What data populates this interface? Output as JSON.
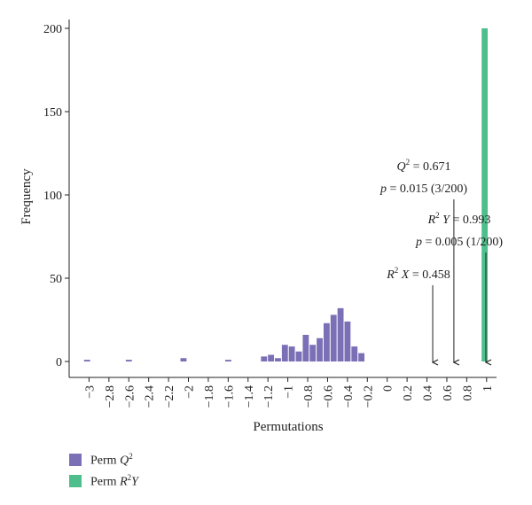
{
  "chart_data": {
    "type": "bar",
    "xlabel": "Permutations",
    "ylabel": "Frequency",
    "xlim": [
      -3.2,
      1.1
    ],
    "ylim": [
      0,
      200
    ],
    "x_ticks": [
      -3,
      -2.8,
      -2.6,
      -2.4,
      -2.2,
      -2,
      -1.8,
      -1.6,
      -1.4,
      -1.2,
      -1,
      -0.8,
      -0.6,
      -0.4,
      -0.2,
      0,
      0.2,
      0.4,
      0.6,
      0.8,
      1
    ],
    "x_tick_labels": [
      "−3",
      "−2.8",
      "−2.6",
      "−2.4",
      "−2.2",
      "−2",
      "−1.8",
      "−1.6",
      "−1.4",
      "−1.2",
      "−1",
      "−0.8",
      "−0.6",
      "−0.4",
      "−0.2",
      "0",
      "0.2",
      "0.4",
      "0.6",
      "0.8",
      "1"
    ],
    "y_ticks": [
      0,
      50,
      100,
      150,
      200
    ],
    "series": [
      {
        "name": "Perm Q2",
        "color": "#7b70b6",
        "bins": [
          {
            "x0": -3.05,
            "x1": -2.98,
            "value": 1
          },
          {
            "x0": -2.63,
            "x1": -2.56,
            "value": 1
          },
          {
            "x0": -2.08,
            "x1": -2.01,
            "value": 2
          },
          {
            "x0": -1.63,
            "x1": -1.56,
            "value": 1
          },
          {
            "x0": -1.27,
            "x1": -1.2,
            "value": 3
          },
          {
            "x0": -1.2,
            "x1": -1.13,
            "value": 4
          },
          {
            "x0": -1.13,
            "x1": -1.06,
            "value": 2
          },
          {
            "x0": -1.06,
            "x1": -0.99,
            "value": 10
          },
          {
            "x0": -0.99,
            "x1": -0.92,
            "value": 9
          },
          {
            "x0": -0.92,
            "x1": -0.85,
            "value": 6
          },
          {
            "x0": -0.85,
            "x1": -0.78,
            "value": 16
          },
          {
            "x0": -0.78,
            "x1": -0.71,
            "value": 10
          },
          {
            "x0": -0.71,
            "x1": -0.64,
            "value": 14
          },
          {
            "x0": -0.64,
            "x1": -0.57,
            "value": 23
          },
          {
            "x0": -0.57,
            "x1": -0.5,
            "value": 28
          },
          {
            "x0": -0.5,
            "x1": -0.43,
            "value": 32
          },
          {
            "x0": -0.43,
            "x1": -0.36,
            "value": 24
          },
          {
            "x0": -0.36,
            "x1": -0.29,
            "value": 9
          },
          {
            "x0": -0.29,
            "x1": -0.22,
            "value": 5
          }
        ]
      },
      {
        "name": "Perm R2Y",
        "color": "#4ebf8c",
        "bins": [
          {
            "x0": 0.95,
            "x1": 1.02,
            "value": 200
          }
        ]
      }
    ],
    "annotations": [
      {
        "lines": [
          "Q2 = 0.671",
          "p = 0.015 (3/200)"
        ],
        "arrow_x": 0.671
      },
      {
        "lines": [
          "R2 Y = 0.993",
          "p = 0.005 (1/200)"
        ],
        "arrow_x": 0.993
      },
      {
        "lines": [
          "R2 X = 0.458"
        ],
        "arrow_x": 0.458
      }
    ],
    "legend_position": "bottom-left"
  }
}
